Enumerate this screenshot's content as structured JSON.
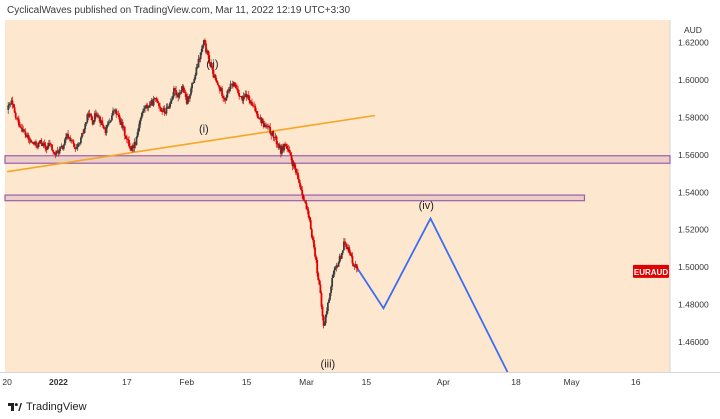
{
  "header": {
    "published_text": "CyclicalWaves published on TradingView.com, Mar 11, 2022 12:19 UTC+3:30"
  },
  "footer": {
    "brand": "TradingView",
    "logo_icon": "tradingview-logo-icon"
  },
  "chart_data": {
    "type": "candlestick",
    "symbol": "EURAUD",
    "currency_label": "AUD",
    "background_color": "#fde7cf",
    "up_color": "#3d3d3d",
    "down_color": "#e00000",
    "ylim": [
      1.444,
      1.632
    ],
    "y_ticks": [
      {
        "value": 1.62,
        "label": "1.62000"
      },
      {
        "value": 1.6,
        "label": "1.60000"
      },
      {
        "value": 1.58,
        "label": "1.58000"
      },
      {
        "value": 1.56,
        "label": "1.56000"
      },
      {
        "value": 1.54,
        "label": "1.54000"
      },
      {
        "value": 1.52,
        "label": "1.52000"
      },
      {
        "value": 1.5,
        "label": "1.50000"
      },
      {
        "value": 1.48,
        "label": "1.48000"
      },
      {
        "value": 1.46,
        "label": "1.46000"
      }
    ],
    "x_ticks": [
      {
        "day": -12,
        "label": "20"
      },
      {
        "day": 0,
        "label": "2022",
        "bold": true
      },
      {
        "day": 16,
        "label": "17"
      },
      {
        "day": 30,
        "label": "Feb"
      },
      {
        "day": 44,
        "label": "15"
      },
      {
        "day": 58,
        "label": "Mar"
      },
      {
        "day": 72,
        "label": "15"
      },
      {
        "day": 90,
        "label": "Apr"
      },
      {
        "day": 107,
        "label": "18"
      },
      {
        "day": 120,
        "label": "May"
      },
      {
        "day": 135,
        "label": "16"
      }
    ],
    "xlim": [
      -12.5,
      143
    ],
    "price_path": [
      [
        -12,
        1.584
      ],
      [
        -11,
        1.588
      ],
      [
        -10,
        1.58
      ],
      [
        -9,
        1.576
      ],
      [
        -8,
        1.572
      ],
      [
        -7,
        1.568
      ],
      [
        -6,
        1.566
      ],
      [
        -5,
        1.565
      ],
      [
        -4,
        1.567
      ],
      [
        -3,
        1.563
      ],
      [
        -2,
        1.566
      ],
      [
        -1,
        1.56
      ],
      [
        0,
        1.562
      ],
      [
        1,
        1.564
      ],
      [
        2,
        1.57
      ],
      [
        3,
        1.568
      ],
      [
        4,
        1.562
      ],
      [
        5,
        1.566
      ],
      [
        6,
        1.574
      ],
      [
        7,
        1.582
      ],
      [
        8,
        1.578
      ],
      [
        9,
        1.583
      ],
      [
        10,
        1.577
      ],
      [
        11,
        1.573
      ],
      [
        12,
        1.578
      ],
      [
        13,
        1.584
      ],
      [
        14,
        1.58
      ],
      [
        15,
        1.575
      ],
      [
        16,
        1.568
      ],
      [
        17,
        1.563
      ],
      [
        18,
        1.567
      ],
      [
        19,
        1.578
      ],
      [
        20,
        1.585
      ],
      [
        21,
        1.586
      ],
      [
        22,
        1.588
      ],
      [
        23,
        1.59
      ],
      [
        24,
        1.584
      ],
      [
        25,
        1.583
      ],
      [
        26,
        1.587
      ],
      [
        27,
        1.594
      ],
      [
        28,
        1.592
      ],
      [
        29,
        1.596
      ],
      [
        30,
        1.588
      ],
      [
        31,
        1.595
      ],
      [
        32,
        1.603
      ],
      [
        33,
        1.612
      ],
      [
        34,
        1.62
      ],
      [
        35,
        1.612
      ],
      [
        36,
        1.604
      ],
      [
        37,
        1.598
      ],
      [
        38,
        1.594
      ],
      [
        39,
        1.59
      ],
      [
        40,
        1.596
      ],
      [
        41,
        1.598
      ],
      [
        42,
        1.594
      ],
      [
        43,
        1.589
      ],
      [
        44,
        1.592
      ],
      [
        45,
        1.587
      ],
      [
        46,
        1.584
      ],
      [
        47,
        1.58
      ],
      [
        48,
        1.576
      ],
      [
        49,
        1.574
      ],
      [
        50,
        1.571
      ],
      [
        51,
        1.567
      ],
      [
        52,
        1.562
      ],
      [
        53,
        1.566
      ],
      [
        54,
        1.56
      ],
      [
        55,
        1.554
      ],
      [
        56,
        1.547
      ],
      [
        57,
        1.54
      ],
      [
        58,
        1.531
      ],
      [
        59,
        1.521
      ],
      [
        60,
        1.507
      ],
      [
        61,
        1.49
      ],
      [
        62,
        1.468
      ],
      [
        63,
        1.48
      ],
      [
        64,
        1.494
      ],
      [
        65,
        1.5
      ],
      [
        66,
        1.506
      ],
      [
        67,
        1.514
      ],
      [
        68,
        1.508
      ],
      [
        69,
        1.502
      ],
      [
        70,
        1.499
      ]
    ],
    "projection_path": [
      {
        "day": 70,
        "price": 1.499
      },
      {
        "day": 76,
        "price": 1.478
      },
      {
        "day": 87,
        "price": 1.526
      },
      {
        "day": 105,
        "price": 1.444
      }
    ],
    "projection_color": "#3b6ef0",
    "trendline": {
      "from": {
        "day": -12,
        "price": 1.551
      },
      "to": {
        "day": 74,
        "price": 1.581
      },
      "color": "#f5a623"
    },
    "horizontal_zones": [
      {
        "price_top": 1.5595,
        "price_bottom": 1.5555,
        "day_end": 143,
        "border": "#9b5fa8"
      },
      {
        "price_top": 1.5385,
        "price_bottom": 1.5355,
        "day_end": 123,
        "border": "#9b5fa8"
      }
    ],
    "wave_labels": [
      {
        "text": "(ii)",
        "day": 36,
        "price": 1.6065
      },
      {
        "text": "(i)",
        "day": 34,
        "price": 1.572
      },
      {
        "text": "(iv)",
        "day": 86,
        "price": 1.531
      },
      {
        "text": "(iii)",
        "day": 63,
        "price": 1.4465
      }
    ],
    "last_price_label": {
      "text": "EURAUD",
      "price": 1.4975,
      "color": "#e00000"
    }
  }
}
